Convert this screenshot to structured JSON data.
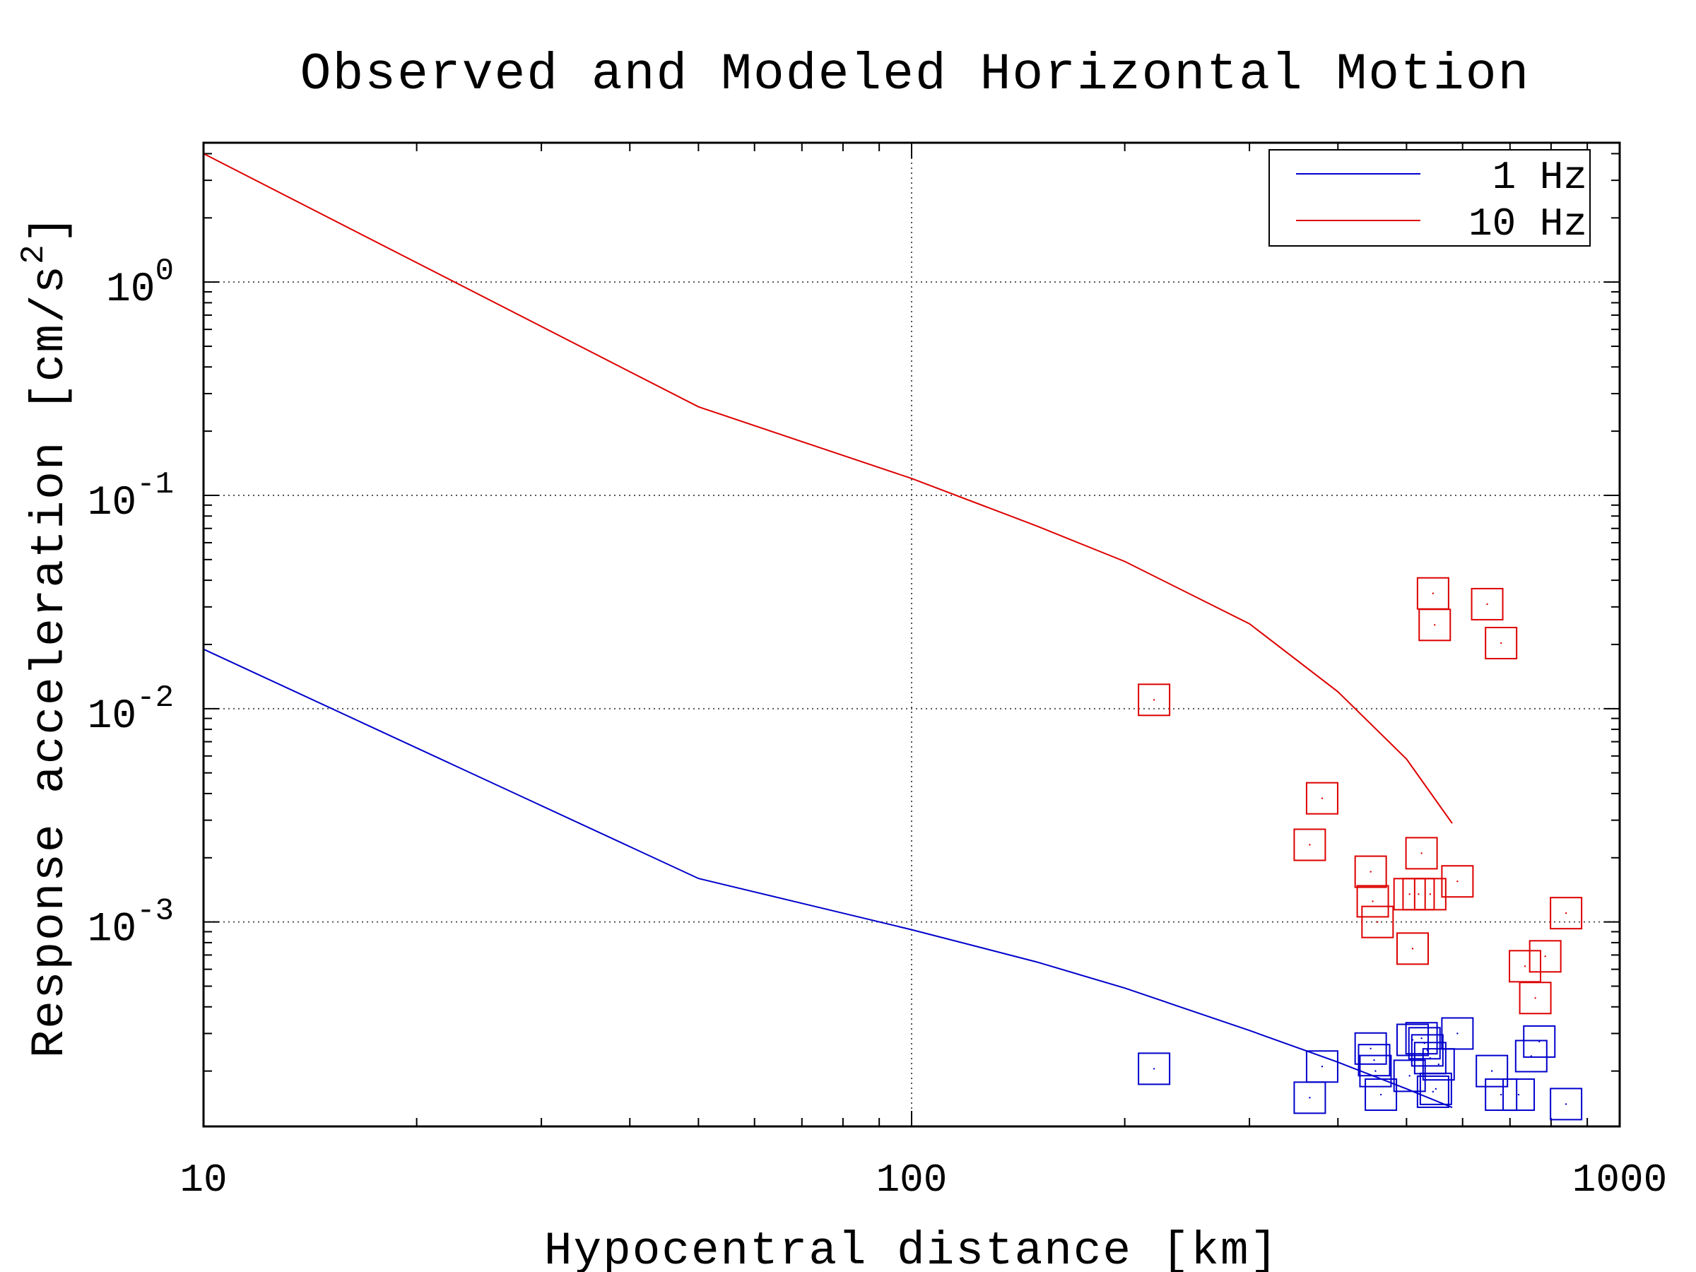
{
  "chart_data": {
    "type": "line",
    "title": "Observed and Modeled Horizontal Motion",
    "xlabel": "Hypocentral distance [km]",
    "ylabel": "Response acceleration [cm/s",
    "ylabel_sup": "2",
    "ylabel_end": "]",
    "xscale": "log",
    "yscale": "log",
    "xlim": [
      10,
      1000
    ],
    "ylim": [
      0.00011,
      4.5
    ],
    "x_ticks": [
      {
        "value": 10,
        "label": "10"
      },
      {
        "value": 100,
        "label": "100"
      },
      {
        "value": 1000,
        "label": "1000"
      }
    ],
    "y_ticks": [
      {
        "value": 1,
        "base": "10",
        "exp": "0"
      },
      {
        "value": 0.1,
        "base": "10",
        "exp": "-1"
      },
      {
        "value": 0.01,
        "base": "10",
        "exp": "-2"
      },
      {
        "value": 0.001,
        "base": "10",
        "exp": "-3"
      }
    ],
    "grid": true,
    "legend_position": "top-right",
    "series": [
      {
        "name": "1 Hz",
        "color": "#0000cc",
        "model": {
          "x": [
            10,
            50,
            100,
            150,
            200,
            300,
            400,
            500,
            580
          ],
          "y": [
            0.019,
            0.0016,
            0.00092,
            0.00065,
            0.00049,
            0.00031,
            0.00022,
            0.000165,
            0.000135
          ]
        },
        "observed": {
          "x": [
            220,
            365,
            380,
            445,
            450,
            452,
            460,
            505,
            510,
            525,
            530,
            535,
            540,
            545,
            550,
            555,
            590,
            660,
            680,
            720,
            750,
            770,
            840
          ],
          "y": [
            0.000205,
            0.00015,
            0.00021,
            0.000255,
            0.000225,
            0.0002,
            0.000155,
            0.00019,
            0.00028,
            0.000285,
            0.00027,
            0.00025,
            0.00023,
            0.00016,
            0.000165,
            0.000215,
            0.0003,
            0.0002,
            0.000155,
            0.000155,
            0.000235,
            0.000275,
            0.00014
          ]
        }
      },
      {
        "name": "10 Hz",
        "color": "#dd0000",
        "model": {
          "x": [
            10,
            50,
            100,
            150,
            200,
            300,
            400,
            500,
            580
          ],
          "y": [
            4.0,
            0.26,
            0.12,
            0.072,
            0.049,
            0.025,
            0.012,
            0.0058,
            0.0029
          ]
        },
        "observed": {
          "x": [
            220,
            365,
            380,
            445,
            448,
            455,
            505,
            510,
            520,
            525,
            540,
            545,
            548,
            590,
            650,
            680,
            735,
            760,
            785,
            840
          ],
          "y": [
            0.011,
            0.0023,
            0.0038,
            0.00172,
            0.00125,
            0.001,
            0.00135,
            0.00075,
            0.00135,
            0.0021,
            0.00135,
            0.0347,
            0.0247,
            0.00155,
            0.0309,
            0.0203,
            0.00062,
            0.00044,
            0.00069,
            0.0011
          ]
        }
      }
    ]
  }
}
